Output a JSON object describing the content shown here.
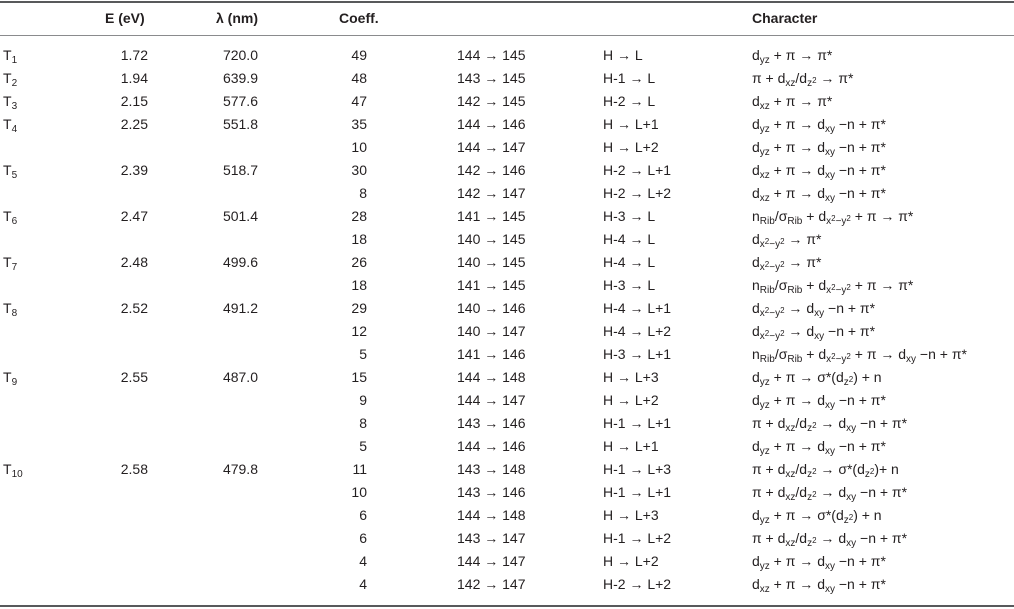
{
  "headers": {
    "energy": "E (eV)",
    "wavelength": "λ (nm)",
    "coefficient": "Coeff.",
    "character": "Character"
  },
  "rows": [
    {
      "state_main": "T",
      "state_sub": "1",
      "energy": "1.72",
      "wavelength": "720.0",
      "coeff": "49",
      "orbitals": "144 → 145",
      "transition": "H → L",
      "character": "d<sub>yz</sub> + π → π*"
    },
    {
      "state_main": "T",
      "state_sub": "2",
      "energy": "1.94",
      "wavelength": "639.9",
      "coeff": "48",
      "orbitals": "143 → 145",
      "transition": "H-1 → L",
      "character": "π + d<sub>xz</sub>/d<sub>z<sup>2</sup></sub> → π*"
    },
    {
      "state_main": "T",
      "state_sub": "3",
      "energy": "2.15",
      "wavelength": "577.6",
      "coeff": "47",
      "orbitals": "142 → 145",
      "transition": "H-2 → L",
      "character": "d<sub>xz</sub> + π → π*"
    },
    {
      "state_main": "T",
      "state_sub": "4",
      "energy": "2.25",
      "wavelength": "551.8",
      "coeff": "35",
      "orbitals": "144 → 146",
      "transition": "H → L+1",
      "character": "d<sub>yz</sub> + π → d<sub>xy</sub> −n + π*"
    },
    {
      "state_main": "",
      "state_sub": "",
      "energy": "",
      "wavelength": "",
      "coeff": "10",
      "orbitals": "144 → 147",
      "transition": "H → L+2",
      "character": "d<sub>yz</sub> + π → d<sub>xy</sub> −n + π*"
    },
    {
      "state_main": "T",
      "state_sub": "5",
      "energy": "2.39",
      "wavelength": "518.7",
      "coeff": "30",
      "orbitals": "142 → 146",
      "transition": "H-2 → L+1",
      "character": "d<sub>xz</sub> + π → d<sub>xy</sub> −n + π*"
    },
    {
      "state_main": "",
      "state_sub": "",
      "energy": "",
      "wavelength": "",
      "coeff": "8",
      "orbitals": "142 → 147",
      "transition": "H-2 → L+2",
      "character": "d<sub>xz</sub> + π → d<sub>xy</sub> −n + π*"
    },
    {
      "state_main": "T",
      "state_sub": "6",
      "energy": "2.47",
      "wavelength": "501.4",
      "coeff": "28",
      "orbitals": "141 → 145",
      "transition": "H-3 → L",
      "character": "n<sub>Rib</sub>/σ<sub>Rib</sub> + d<sub>x<sup>2</sup>−y<sup>2</sup></sub> + π → π*"
    },
    {
      "state_main": "",
      "state_sub": "",
      "energy": "",
      "wavelength": "",
      "coeff": "18",
      "orbitals": "140 → 145",
      "transition": "H-4 → L",
      "character": "d<sub>x<sup>2</sup>−y<sup>2</sup></sub> → π*"
    },
    {
      "state_main": "T",
      "state_sub": "7",
      "energy": "2.48",
      "wavelength": "499.6",
      "coeff": "26",
      "orbitals": "140 → 145",
      "transition": "H-4 → L",
      "character": "d<sub>x<sup>2</sup>−y<sup>2</sup></sub> → π*"
    },
    {
      "state_main": "",
      "state_sub": "",
      "energy": "",
      "wavelength": "",
      "coeff": "18",
      "orbitals": "141 → 145",
      "transition": "H-3 → L",
      "character": "n<sub>Rib</sub>/σ<sub>Rib</sub> + d<sub>x<sup>2</sup>−y<sup>2</sup></sub> + π → π*"
    },
    {
      "state_main": "T",
      "state_sub": "8",
      "energy": "2.52",
      "wavelength": "491.2",
      "coeff": "29",
      "orbitals": "140 → 146",
      "transition": "H-4 → L+1",
      "character": "d<sub>x<sup>2</sup>−y<sup>2</sup></sub> → d<sub>xy</sub> −n + π*"
    },
    {
      "state_main": "",
      "state_sub": "",
      "energy": "",
      "wavelength": "",
      "coeff": "12",
      "orbitals": "140 → 147",
      "transition": "H-4 → L+2",
      "character": "d<sub>x<sup>2</sup>−y<sup>2</sup></sub> → d<sub>xy</sub> −n + π*"
    },
    {
      "state_main": "",
      "state_sub": "",
      "energy": "",
      "wavelength": "",
      "coeff": "5",
      "orbitals": "141 → 146",
      "transition": "H-3 → L+1",
      "character": "n<sub>Rib</sub>/σ<sub>Rib</sub> + d<sub>x<sup>2</sup>−y<sup>2</sup></sub> + π → d<sub>xy</sub> −n + π*"
    },
    {
      "state_main": "T",
      "state_sub": "9",
      "energy": "2.55",
      "wavelength": "487.0",
      "coeff": "15",
      "orbitals": "144 → 148",
      "transition": "H → L+3",
      "character": "d<sub>yz</sub> + π → σ*(d<sub>z<sup>2</sup></sub>) + n"
    },
    {
      "state_main": "",
      "state_sub": "",
      "energy": "",
      "wavelength": "",
      "coeff": "9",
      "orbitals": "144 → 147",
      "transition": "H → L+2",
      "character": "d<sub>yz</sub> + π → d<sub>xy</sub> −n + π*"
    },
    {
      "state_main": "",
      "state_sub": "",
      "energy": "",
      "wavelength": "",
      "coeff": "8",
      "orbitals": "143 → 146",
      "transition": "H-1 → L+1",
      "character": "π + d<sub>xz</sub>/d<sub>z<sup>2</sup></sub> → d<sub>xy</sub> −n + π*"
    },
    {
      "state_main": "",
      "state_sub": "",
      "energy": "",
      "wavelength": "",
      "coeff": "5",
      "orbitals": "144 → 146",
      "transition": "H → L+1",
      "character": "d<sub>yz</sub> + π → d<sub>xy</sub> −n + π*"
    },
    {
      "state_main": "T",
      "state_sub": "10",
      "energy": "2.58",
      "wavelength": "479.8",
      "coeff": "11",
      "orbitals": "143 → 148",
      "transition": "H-1 → L+3",
      "character": "π + d<sub>xz</sub>/d<sub>z<sup>2</sup></sub> → σ*(d<sub>z<sup>2</sup></sub>)+ n"
    },
    {
      "state_main": "",
      "state_sub": "",
      "energy": "",
      "wavelength": "",
      "coeff": "10",
      "orbitals": "143 → 146",
      "transition": "H-1 → L+1",
      "character": "π + d<sub>xz</sub>/d<sub>z<sup>2</sup></sub> → d<sub>xy</sub> −n + π*"
    },
    {
      "state_main": "",
      "state_sub": "",
      "energy": "",
      "wavelength": "",
      "coeff": "6",
      "orbitals": "144 → 148",
      "transition": "H → L+3",
      "character": "d<sub>yz</sub> + π → σ*(d<sub>z<sup>2</sup></sub>) + n"
    },
    {
      "state_main": "",
      "state_sub": "",
      "energy": "",
      "wavelength": "",
      "coeff": "6",
      "orbitals": "143 → 147",
      "transition": "H-1 → L+2",
      "character": "π + d<sub>xz</sub>/d<sub>z<sup>2</sup></sub> → d<sub>xy</sub> −n + π*"
    },
    {
      "state_main": "",
      "state_sub": "",
      "energy": "",
      "wavelength": "",
      "coeff": "4",
      "orbitals": "144 → 147",
      "transition": "H → L+2",
      "character": "d<sub>yz</sub> + π → d<sub>xy</sub> −n + π*"
    },
    {
      "state_main": "",
      "state_sub": "",
      "energy": "",
      "wavelength": "",
      "coeff": "4",
      "orbitals": "142 → 147",
      "transition": "H-2 → L+2",
      "character": "d<sub>xz</sub> + π → d<sub>xy</sub> −n + π*"
    }
  ]
}
